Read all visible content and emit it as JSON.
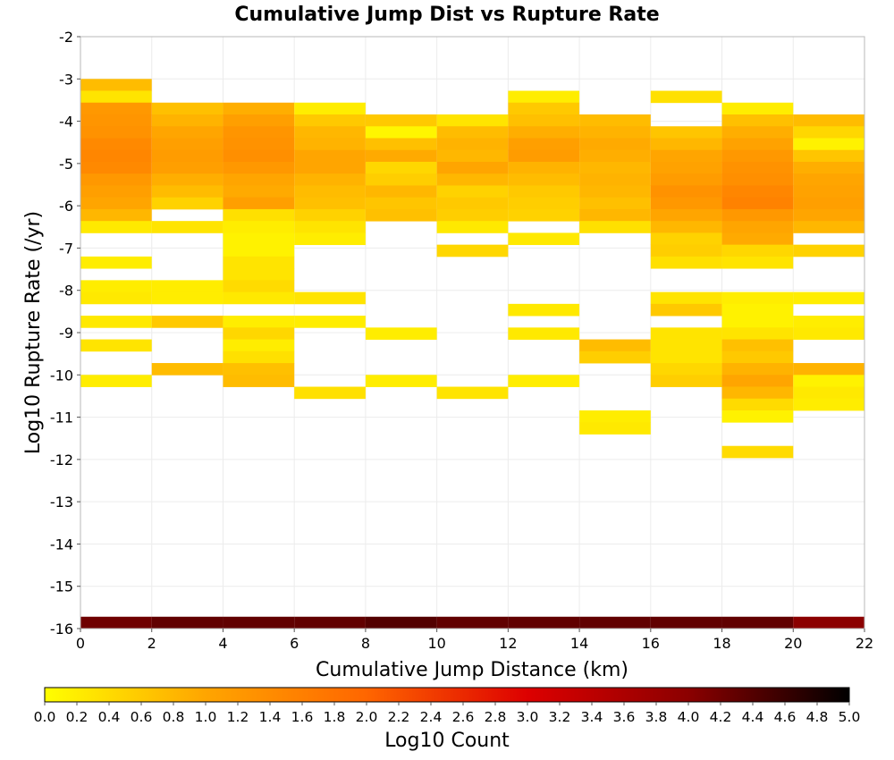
{
  "chart_data": {
    "type": "heatmap",
    "title": "Cumulative Jump Dist vs Rupture Rate",
    "xlabel": "Cumulative Jump Distance (km)",
    "ylabel": "Log10 Rupture Rate (/yr)",
    "colorbar_label": "Log10 Count",
    "xlim": [
      0,
      22
    ],
    "ylim": [
      -16,
      -2
    ],
    "x_ticks": [
      "0",
      "2",
      "4",
      "6",
      "8",
      "10",
      "12",
      "14",
      "16",
      "18",
      "20",
      "22"
    ],
    "y_ticks": [
      "-2",
      "-3",
      "-4",
      "-5",
      "-6",
      "-7",
      "-8",
      "-9",
      "-10",
      "-11",
      "-12",
      "-13",
      "-14",
      "-15",
      "-16"
    ],
    "colorbar_ticks": [
      "0.0",
      "0.2",
      "0.4",
      "0.6",
      "0.8",
      "1.0",
      "1.2",
      "1.4",
      "1.6",
      "1.8",
      "2.0",
      "2.2",
      "2.4",
      "2.6",
      "2.8",
      "3.0",
      "3.2",
      "3.4",
      "3.6",
      "3.8",
      "4.0",
      "4.2",
      "4.4",
      "4.6",
      "4.8",
      "5.0"
    ],
    "colorbar_range": [
      0,
      5
    ],
    "colormap": [
      "#ffff00",
      "#ffa500",
      "#ff6600",
      "#dd0000",
      "#8b0000",
      "#000000"
    ],
    "grid": true,
    "x_bin_width_km": 2,
    "y_bin_height_log": 0.28,
    "x_bin_starts": [
      0,
      2,
      4,
      6,
      8,
      10,
      12,
      14,
      16,
      18,
      20
    ],
    "cells_note": "each column lists [log10 rupture rate bin bottom edge, log10 count]",
    "columns": [
      [
        [
          -3.28,
          0.75
        ],
        [
          -3.56,
          0.3
        ],
        [
          -3.84,
          1.2
        ],
        [
          -4.12,
          1.25
        ],
        [
          -4.4,
          1.3
        ],
        [
          -4.68,
          1.45
        ],
        [
          -4.96,
          1.5
        ],
        [
          -5.24,
          1.45
        ],
        [
          -5.52,
          1.2
        ],
        [
          -5.8,
          1.1
        ],
        [
          -6.08,
          1.0
        ],
        [
          -6.36,
          0.8
        ],
        [
          -6.64,
          0.25
        ],
        [
          -7.48,
          0.2
        ],
        [
          -8.04,
          0.2
        ],
        [
          -8.32,
          0.25
        ],
        [
          -8.88,
          0.25
        ],
        [
          -9.44,
          0.3
        ],
        [
          -10.28,
          0.2
        ],
        [
          -16.0,
          4.2
        ]
      ],
      [
        [
          -3.84,
          0.7
        ],
        [
          -4.12,
          0.85
        ],
        [
          -4.4,
          1.0
        ],
        [
          -4.68,
          1.1
        ],
        [
          -4.96,
          1.15
        ],
        [
          -5.24,
          1.1
        ],
        [
          -5.52,
          0.9
        ],
        [
          -5.8,
          0.75
        ],
        [
          -6.08,
          0.5
        ],
        [
          -6.64,
          0.3
        ],
        [
          -8.04,
          0.2
        ],
        [
          -8.32,
          0.2
        ],
        [
          -8.88,
          0.6
        ],
        [
          -10.0,
          0.75
        ],
        [
          -16.0,
          4.3
        ]
      ],
      [
        [
          -3.84,
          0.9
        ],
        [
          -4.12,
          1.1
        ],
        [
          -4.4,
          1.25
        ],
        [
          -4.68,
          1.3
        ],
        [
          -4.96,
          1.35
        ],
        [
          -5.24,
          1.2
        ],
        [
          -5.52,
          1.0
        ],
        [
          -5.8,
          0.95
        ],
        [
          -6.08,
          1.1
        ],
        [
          -6.36,
          0.35
        ],
        [
          -6.64,
          0.2
        ],
        [
          -6.92,
          0.15
        ],
        [
          -7.2,
          0.15
        ],
        [
          -7.48,
          0.3
        ],
        [
          -7.76,
          0.3
        ],
        [
          -8.04,
          0.4
        ],
        [
          -8.32,
          0.25
        ],
        [
          -8.88,
          0.2
        ],
        [
          -9.16,
          0.45
        ],
        [
          -9.44,
          0.2
        ],
        [
          -9.72,
          0.35
        ],
        [
          -10.0,
          0.7
        ],
        [
          -10.28,
          0.75
        ],
        [
          -16.0,
          4.3
        ]
      ],
      [
        [
          -3.84,
          0.2
        ],
        [
          -4.12,
          0.6
        ],
        [
          -4.4,
          0.8
        ],
        [
          -4.68,
          0.85
        ],
        [
          -4.96,
          1.0
        ],
        [
          -5.24,
          1.0
        ],
        [
          -5.52,
          0.85
        ],
        [
          -5.8,
          0.75
        ],
        [
          -6.08,
          0.7
        ],
        [
          -6.36,
          0.5
        ],
        [
          -6.64,
          0.3
        ],
        [
          -6.92,
          0.2
        ],
        [
          -8.32,
          0.3
        ],
        [
          -8.88,
          0.2
        ],
        [
          -10.56,
          0.35
        ],
        [
          -16.0,
          4.3
        ]
      ],
      [
        [
          -4.12,
          0.6
        ],
        [
          -4.4,
          0.1
        ],
        [
          -4.68,
          0.7
        ],
        [
          -4.96,
          0.95
        ],
        [
          -5.24,
          0.45
        ],
        [
          -5.52,
          0.55
        ],
        [
          -5.8,
          0.8
        ],
        [
          -6.08,
          0.65
        ],
        [
          -6.36,
          0.7
        ],
        [
          -9.16,
          0.2
        ],
        [
          -10.28,
          0.2
        ],
        [
          -16.0,
          4.4
        ]
      ],
      [
        [
          -4.12,
          0.3
        ],
        [
          -4.4,
          0.75
        ],
        [
          -4.68,
          0.85
        ],
        [
          -4.96,
          0.8
        ],
        [
          -5.24,
          1.0
        ],
        [
          -5.52,
          0.8
        ],
        [
          -5.8,
          0.5
        ],
        [
          -6.08,
          0.6
        ],
        [
          -6.36,
          0.55
        ],
        [
          -6.64,
          0.25
        ],
        [
          -7.2,
          0.45
        ],
        [
          -10.56,
          0.3
        ],
        [
          -16.0,
          4.3
        ]
      ],
      [
        [
          -3.56,
          0.2
        ],
        [
          -3.84,
          0.6
        ],
        [
          -4.12,
          0.7
        ],
        [
          -4.4,
          0.9
        ],
        [
          -4.68,
          1.1
        ],
        [
          -4.96,
          1.15
        ],
        [
          -5.24,
          0.85
        ],
        [
          -5.52,
          0.75
        ],
        [
          -5.8,
          0.6
        ],
        [
          -6.08,
          0.55
        ],
        [
          -6.36,
          0.5
        ],
        [
          -6.92,
          0.25
        ],
        [
          -8.6,
          0.25
        ],
        [
          -9.16,
          0.25
        ],
        [
          -10.28,
          0.2
        ],
        [
          -16.0,
          4.3
        ]
      ],
      [
        [
          -4.12,
          0.75
        ],
        [
          -4.4,
          0.85
        ],
        [
          -4.68,
          0.95
        ],
        [
          -4.96,
          0.9
        ],
        [
          -5.24,
          0.8
        ],
        [
          -5.52,
          0.85
        ],
        [
          -5.8,
          0.8
        ],
        [
          -6.08,
          0.7
        ],
        [
          -6.36,
          0.8
        ],
        [
          -6.64,
          0.35
        ],
        [
          -9.44,
          0.75
        ],
        [
          -9.72,
          0.55
        ],
        [
          -11.12,
          0.2
        ],
        [
          -11.4,
          0.25
        ],
        [
          -16.0,
          4.3
        ]
      ],
      [
        [
          -3.56,
          0.35
        ],
        [
          -4.4,
          0.65
        ],
        [
          -4.68,
          0.8
        ],
        [
          -4.96,
          1.0
        ],
        [
          -5.24,
          1.05
        ],
        [
          -5.52,
          1.15
        ],
        [
          -5.8,
          1.3
        ],
        [
          -6.08,
          1.2
        ],
        [
          -6.36,
          1.0
        ],
        [
          -6.64,
          0.8
        ],
        [
          -6.92,
          0.5
        ],
        [
          -7.2,
          0.55
        ],
        [
          -7.48,
          0.35
        ],
        [
          -8.32,
          0.3
        ],
        [
          -8.6,
          0.6
        ],
        [
          -9.16,
          0.3
        ],
        [
          -9.44,
          0.3
        ],
        [
          -9.72,
          0.3
        ],
        [
          -10.0,
          0.45
        ],
        [
          -10.28,
          0.55
        ],
        [
          -16.0,
          4.3
        ]
      ],
      [
        [
          -3.84,
          0.2
        ],
        [
          -4.12,
          0.7
        ],
        [
          -4.4,
          0.9
        ],
        [
          -4.68,
          1.05
        ],
        [
          -4.96,
          1.2
        ],
        [
          -5.24,
          1.3
        ],
        [
          -5.52,
          1.35
        ],
        [
          -5.8,
          1.5
        ],
        [
          -6.08,
          1.55
        ],
        [
          -6.36,
          1.2
        ],
        [
          -6.64,
          1.0
        ],
        [
          -6.92,
          0.95
        ],
        [
          -7.2,
          0.45
        ],
        [
          -7.48,
          0.3
        ],
        [
          -8.32,
          0.2
        ],
        [
          -8.6,
          0.15
        ],
        [
          -8.88,
          0.15
        ],
        [
          -9.16,
          0.3
        ],
        [
          -9.44,
          0.7
        ],
        [
          -9.72,
          0.6
        ],
        [
          -10.0,
          0.85
        ],
        [
          -10.28,
          1.0
        ],
        [
          -10.56,
          0.8
        ],
        [
          -10.84,
          0.4
        ],
        [
          -11.12,
          0.15
        ],
        [
          -11.96,
          0.4
        ],
        [
          -16.0,
          4.3
        ]
      ],
      [
        [
          -4.12,
          0.75
        ],
        [
          -4.4,
          0.45
        ],
        [
          -4.68,
          0.15
        ],
        [
          -4.96,
          0.65
        ],
        [
          -5.24,
          0.9
        ],
        [
          -5.52,
          1.0
        ],
        [
          -5.8,
          1.05
        ],
        [
          -6.08,
          1.1
        ],
        [
          -6.36,
          1.0
        ],
        [
          -6.64,
          0.8
        ],
        [
          -7.2,
          0.5
        ],
        [
          -8.32,
          0.2
        ],
        [
          -8.88,
          0.2
        ],
        [
          -9.16,
          0.25
        ],
        [
          -10.0,
          0.85
        ],
        [
          -10.28,
          0.15
        ],
        [
          -10.56,
          0.25
        ],
        [
          -10.84,
          0.2
        ],
        [
          -16.0,
          4.0
        ]
      ]
    ]
  }
}
